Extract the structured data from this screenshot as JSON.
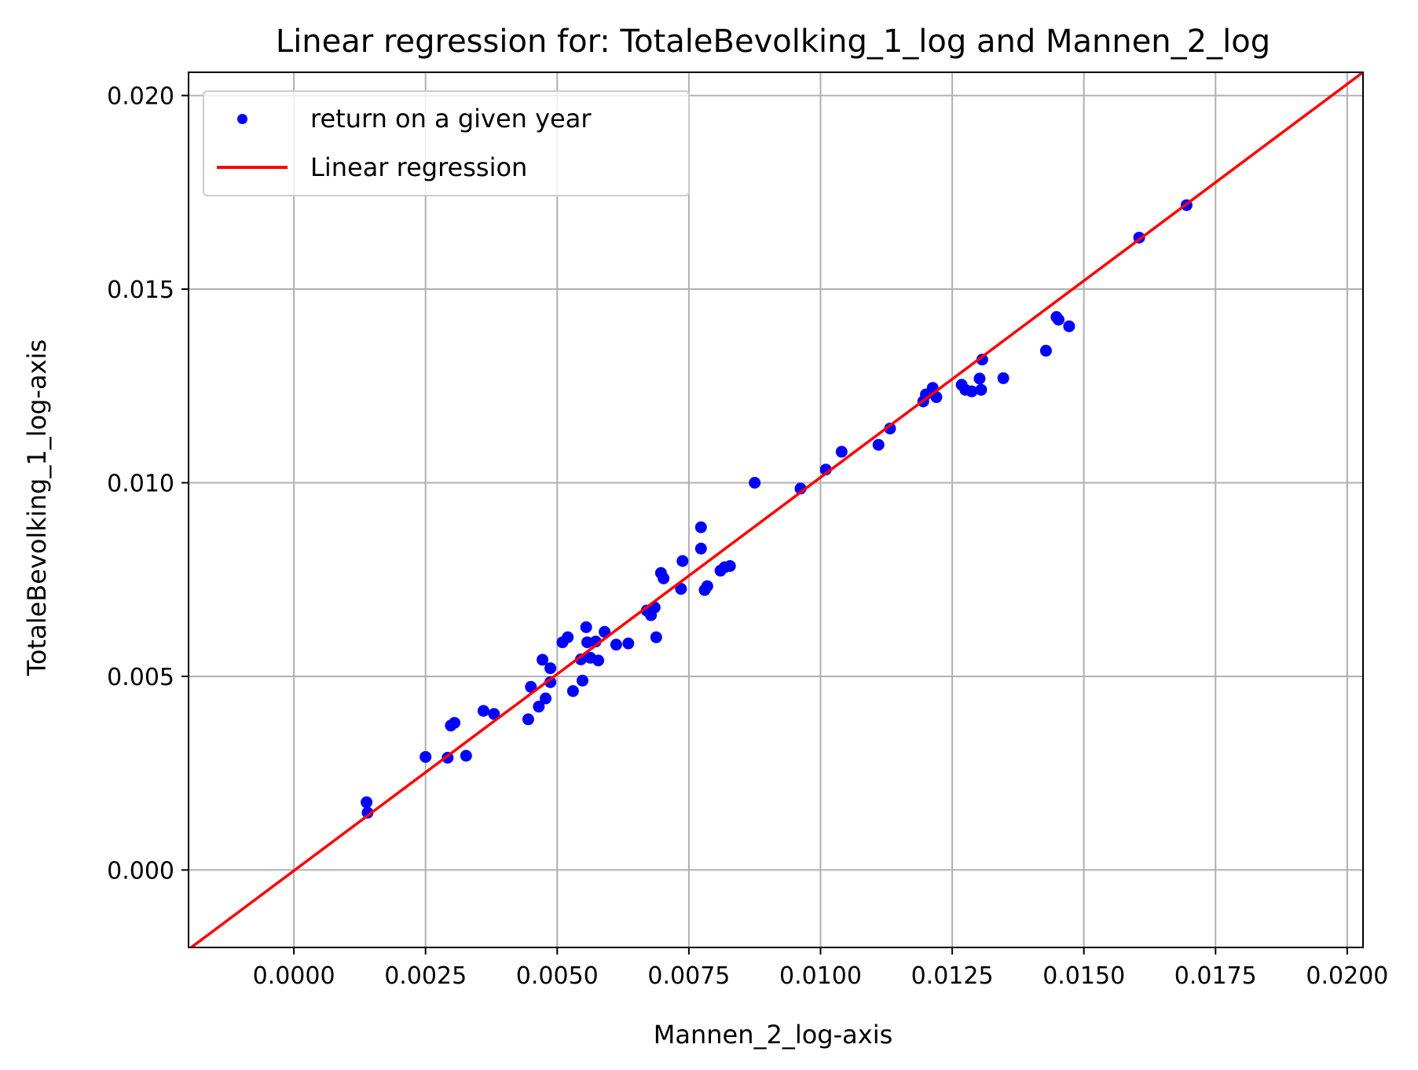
{
  "chart_data": {
    "type": "scatter",
    "title": "Linear regression for: TotaleBevolking_1_log and Mannen_2_log",
    "xlabel": "Mannen_2_log-axis",
    "ylabel": "TotaleBevolking_1_log-axis",
    "xlim": [
      -0.002,
      0.0203
    ],
    "ylim": [
      -0.002,
      0.0206
    ],
    "xticks": [
      0.0,
      0.0025,
      0.005,
      0.0075,
      0.01,
      0.0125,
      0.015,
      0.0175,
      0.02
    ],
    "xtick_labels": [
      "0.0000",
      "0.0025",
      "0.0050",
      "0.0075",
      "0.0100",
      "0.0125",
      "0.0150",
      "0.0175",
      "0.0200"
    ],
    "yticks": [
      0.0,
      0.005,
      0.01,
      0.015,
      0.02
    ],
    "ytick_labels": [
      "0.000",
      "0.005",
      "0.010",
      "0.015",
      "0.020"
    ],
    "grid": true,
    "legend_position": "top-left",
    "series": [
      {
        "name": "return on a given year",
        "kind": "scatter",
        "color": "#0000ff",
        "points": [
          [
            0.00138,
            0.00175
          ],
          [
            0.0014,
            0.00148
          ],
          [
            0.0025,
            0.00292
          ],
          [
            0.00292,
            0.0029
          ],
          [
            0.00298,
            0.00373
          ],
          [
            0.00305,
            0.0038
          ],
          [
            0.00327,
            0.00295
          ],
          [
            0.0036,
            0.00411
          ],
          [
            0.0038,
            0.00403
          ],
          [
            0.00445,
            0.00389
          ],
          [
            0.0045,
            0.00473
          ],
          [
            0.00465,
            0.00422
          ],
          [
            0.00472,
            0.00543
          ],
          [
            0.00478,
            0.00443
          ],
          [
            0.00487,
            0.00485
          ],
          [
            0.00487,
            0.00521
          ],
          [
            0.0051,
            0.00588
          ],
          [
            0.0052,
            0.00601
          ],
          [
            0.0053,
            0.00462
          ],
          [
            0.00545,
            0.00544
          ],
          [
            0.00548,
            0.00489
          ],
          [
            0.00555,
            0.00627
          ],
          [
            0.00557,
            0.00588
          ],
          [
            0.00563,
            0.00548
          ],
          [
            0.00573,
            0.0059
          ],
          [
            0.00578,
            0.00541
          ],
          [
            0.0059,
            0.00615
          ],
          [
            0.00612,
            0.00582
          ],
          [
            0.00635,
            0.00585
          ],
          [
            0.0067,
            0.0067
          ],
          [
            0.00678,
            0.00658
          ],
          [
            0.00685,
            0.00678
          ],
          [
            0.00688,
            0.00601
          ],
          [
            0.00697,
            0.00767
          ],
          [
            0.00702,
            0.00753
          ],
          [
            0.00735,
            0.00726
          ],
          [
            0.00738,
            0.00798
          ],
          [
            0.00773,
            0.00885
          ],
          [
            0.00773,
            0.0083
          ],
          [
            0.0078,
            0.00723
          ],
          [
            0.00785,
            0.00733
          ],
          [
            0.0081,
            0.00773
          ],
          [
            0.00818,
            0.00782
          ],
          [
            0.00828,
            0.00785
          ],
          [
            0.00875,
            0.01
          ],
          [
            0.00962,
            0.00985
          ],
          [
            0.0101,
            0.01034
          ],
          [
            0.0104,
            0.0108
          ],
          [
            0.0111,
            0.01098
          ],
          [
            0.01132,
            0.0114
          ],
          [
            0.01195,
            0.0121
          ],
          [
            0.012,
            0.01228
          ],
          [
            0.01213,
            0.01245
          ],
          [
            0.0122,
            0.01221
          ],
          [
            0.01268,
            0.01253
          ],
          [
            0.01275,
            0.0124
          ],
          [
            0.01287,
            0.01236
          ],
          [
            0.01302,
            0.01269
          ],
          [
            0.01305,
            0.0124
          ],
          [
            0.01307,
            0.01318
          ],
          [
            0.01347,
            0.0127
          ],
          [
            0.01428,
            0.01341
          ],
          [
            0.01448,
            0.01428
          ],
          [
            0.01452,
            0.01421
          ],
          [
            0.01472,
            0.01404
          ],
          [
            0.01605,
            0.01633
          ],
          [
            0.01695,
            0.01717
          ]
        ]
      },
      {
        "name": "Linear regression",
        "kind": "line",
        "color": "#ff0000",
        "points": [
          [
            -0.002,
            -0.00205
          ],
          [
            0.0203,
            0.0206
          ]
        ]
      }
    ]
  }
}
